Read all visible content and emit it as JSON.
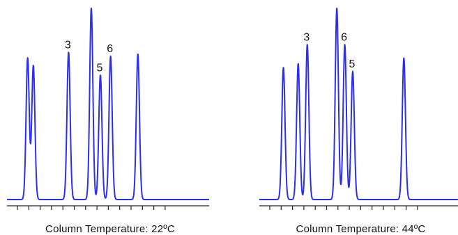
{
  "colors": {
    "trace": "#2b2ff0",
    "axis": "#222222",
    "text": "#111111",
    "background": "#ffffff"
  },
  "chart_data": [
    {
      "type": "line",
      "title": "Column Temperature:  22ºC",
      "x": [
        0,
        1,
        2,
        3,
        4,
        5,
        6,
        7,
        8,
        9,
        10,
        11,
        12,
        13
      ],
      "xlim": [
        0,
        13.5
      ],
      "ylim": [
        0,
        1
      ],
      "grid": false,
      "peaks": [
        {
          "x": 0.9,
          "height": 0.74,
          "label": ""
        },
        {
          "x": 1.4,
          "height": 0.7,
          "label": ""
        },
        {
          "x": 4.5,
          "height": 0.77,
          "label": "3"
        },
        {
          "x": 6.5,
          "height": 1.0,
          "label": ""
        },
        {
          "x": 7.3,
          "height": 0.65,
          "label": "5"
        },
        {
          "x": 8.2,
          "height": 0.75,
          "label": "6"
        },
        {
          "x": 10.6,
          "height": 0.76,
          "label": ""
        }
      ]
    },
    {
      "type": "line",
      "title": "Column Temperature:  44ºC",
      "x": [
        0,
        1,
        2,
        3,
        4,
        5,
        6,
        7,
        8,
        9,
        10,
        11,
        12,
        13
      ],
      "xlim": [
        0,
        13.5
      ],
      "ylim": [
        0,
        1
      ],
      "grid": false,
      "peaks": [
        {
          "x": 1.2,
          "height": 0.69,
          "label": ""
        },
        {
          "x": 2.5,
          "height": 0.71,
          "label": ""
        },
        {
          "x": 3.3,
          "height": 0.81,
          "label": "3"
        },
        {
          "x": 5.9,
          "height": 1.0,
          "label": ""
        },
        {
          "x": 6.6,
          "height": 0.81,
          "label": "6"
        },
        {
          "x": 7.3,
          "height": 0.67,
          "label": "5"
        },
        {
          "x": 11.8,
          "height": 0.74,
          "label": ""
        }
      ]
    }
  ]
}
